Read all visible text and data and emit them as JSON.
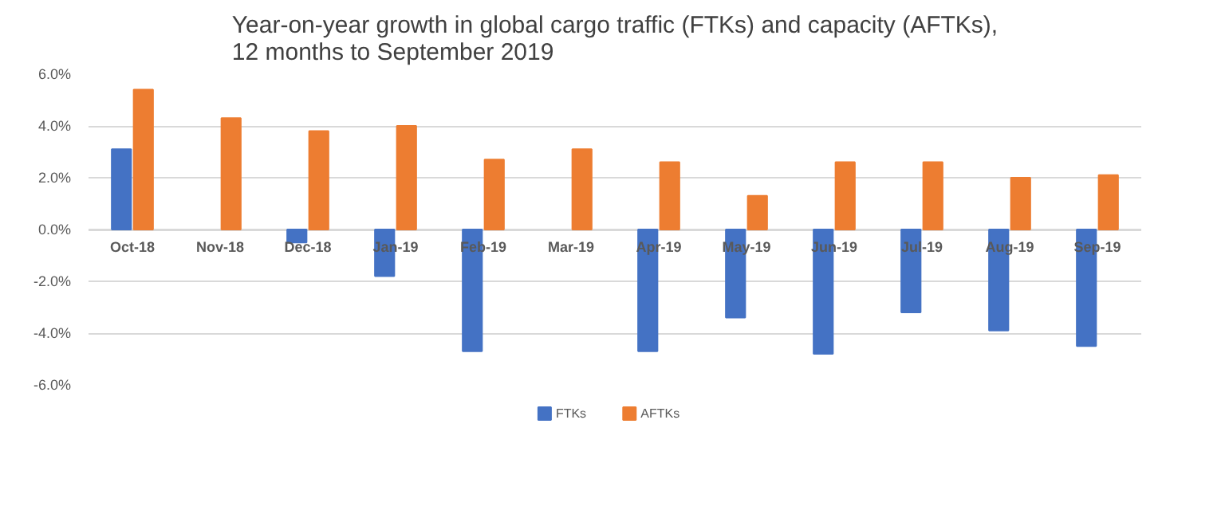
{
  "chart_data": {
    "type": "bar",
    "title": "Year-on-year growth in global cargo traffic (FTKs) and capacity (AFTKs),\n12 months to September 2019",
    "categories": [
      "Oct-18",
      "Nov-18",
      "Dec-18",
      "Jan-19",
      "Feb-19",
      "Mar-19",
      "Apr-19",
      "May-19",
      "Jun-19",
      "Jul-19",
      "Aug-19",
      "Sep-19"
    ],
    "series": [
      {
        "name": "FTKs",
        "color": "#4472c4",
        "values": [
          3.1,
          null,
          -0.5,
          -1.8,
          -4.7,
          null,
          -4.7,
          -3.4,
          -4.8,
          -3.2,
          -3.9,
          -4.5
        ]
      },
      {
        "name": "AFTKs",
        "color": "#ed7d31",
        "values": [
          5.4,
          4.3,
          3.8,
          4.0,
          2.7,
          3.1,
          2.6,
          1.3,
          2.6,
          2.6,
          2.0,
          2.1
        ]
      }
    ],
    "ylim": [
      -6,
      6
    ],
    "yticks": [
      {
        "value": -6,
        "label": "-6.0%"
      },
      {
        "value": -4,
        "label": "-4.0%"
      },
      {
        "value": -2,
        "label": "-2.0%"
      },
      {
        "value": 0,
        "label": "0.0%"
      },
      {
        "value": 2,
        "label": "2.0%"
      },
      {
        "value": 4,
        "label": "4.0%"
      },
      {
        "value": 6,
        "label": "6.0%"
      }
    ],
    "grid": "y",
    "legend": "bottom"
  }
}
